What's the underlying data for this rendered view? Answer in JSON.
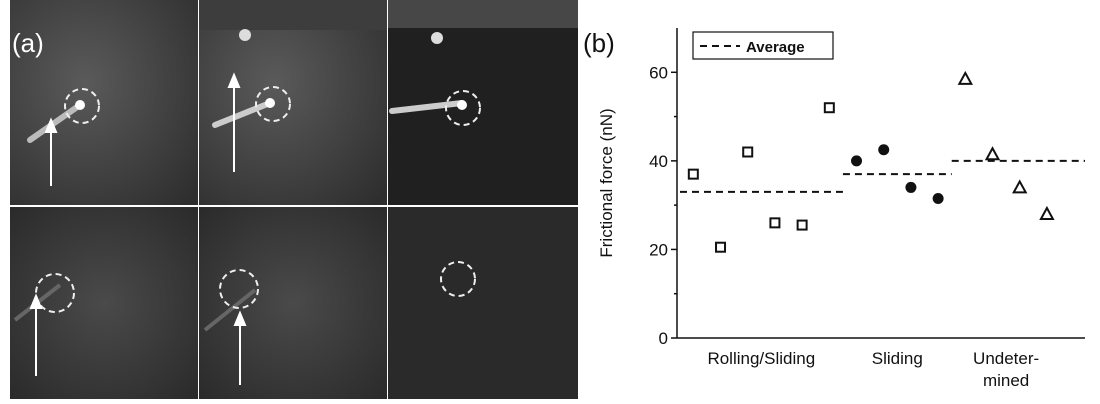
{
  "panel_a": {
    "label": "(a)"
  },
  "chart_data": {
    "type": "scatter",
    "panel_label": "(b)",
    "ylabel": "Frictional force (nN)",
    "categories": [
      "Rolling/Sliding",
      "Sliding",
      "Undeter-\nmined"
    ],
    "series": [
      {
        "marker": "square",
        "color": "#111111",
        "x": [
          1,
          2,
          3,
          4,
          5,
          6
        ],
        "values": [
          37,
          20.5,
          42,
          26,
          25.5,
          52
        ]
      },
      {
        "marker": "circle",
        "color": "#111111",
        "x": [
          7,
          8,
          9,
          10
        ],
        "values": [
          40,
          42.5,
          34,
          31.5
        ]
      },
      {
        "marker": "triangle",
        "color": "#111111",
        "x": [
          11,
          12,
          13,
          14
        ],
        "values": [
          58.5,
          41.5,
          34,
          28
        ]
      }
    ],
    "averages": [
      33,
      37,
      40
    ],
    "average_label": "Average",
    "xlim": [
      0.4,
      15.4
    ],
    "ylim": [
      0,
      70
    ],
    "yticks": [
      0,
      20,
      40,
      60
    ],
    "yminor_ticks": [
      10,
      30,
      50
    ]
  }
}
